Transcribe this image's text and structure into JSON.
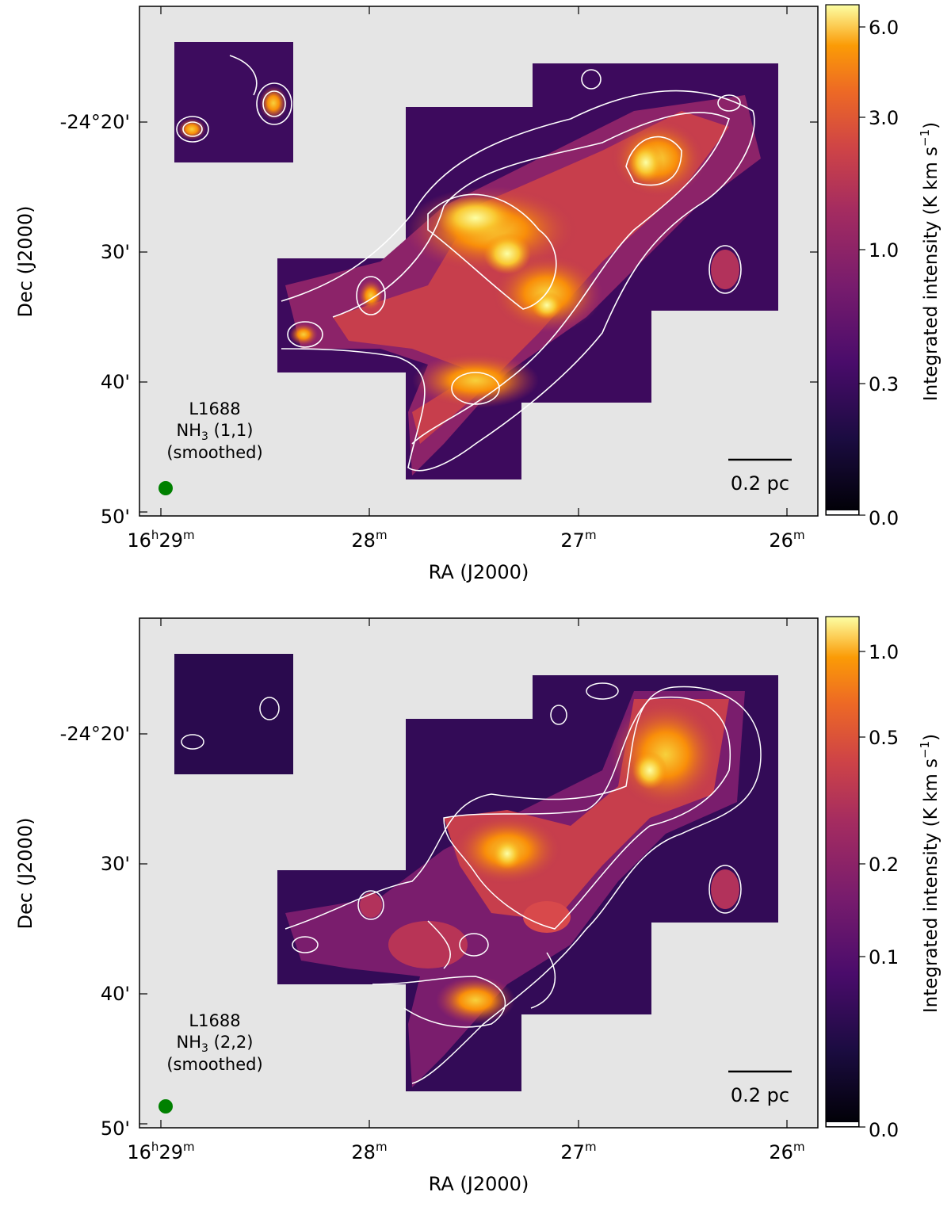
{
  "panels": [
    {
      "label_line1": "L1688",
      "label_mol": "NH",
      "label_sub": "3",
      "label_trans": " (1,1)",
      "label_line3": "(smoothed)",
      "scalebar_text": "0.2 pc",
      "colorbar_ticks": [
        "6.0",
        "3.0",
        "1.0",
        "0.3",
        "0.0"
      ],
      "colorbar_label": "Integrated intensity (K km s",
      "colorbar_label_sup": "−1",
      "colorbar_label_end": ")"
    },
    {
      "label_line1": "L1688",
      "label_mol": "NH",
      "label_sub": "3",
      "label_trans": " (2,2)",
      "label_line3": "(smoothed)",
      "scalebar_text": "0.2 pc",
      "colorbar_ticks": [
        "1.0",
        "0.5",
        "0.2",
        "0.1",
        "0.0"
      ],
      "colorbar_label": "Integrated intensity (K km s",
      "colorbar_label_sup": "−1",
      "colorbar_label_end": ")"
    }
  ],
  "axes": {
    "xlabel": "RA (J2000)",
    "ylabel": "Dec (J2000)",
    "x_ticks": [
      {
        "main": "16",
        "sup1": "h",
        "mid": "29",
        "sup2": "m"
      },
      {
        "main": "28",
        "sup2": "m"
      },
      {
        "main": "27",
        "sup2": "m"
      },
      {
        "main": "26",
        "sup2": "m"
      }
    ],
    "y_ticks": [
      "-24°20'",
      "30'",
      "40'",
      "50'"
    ]
  },
  "colors": {
    "background": "#e5e5e5",
    "beam": "#008000",
    "colormap": "inferno",
    "contours": "#ffffff"
  }
}
